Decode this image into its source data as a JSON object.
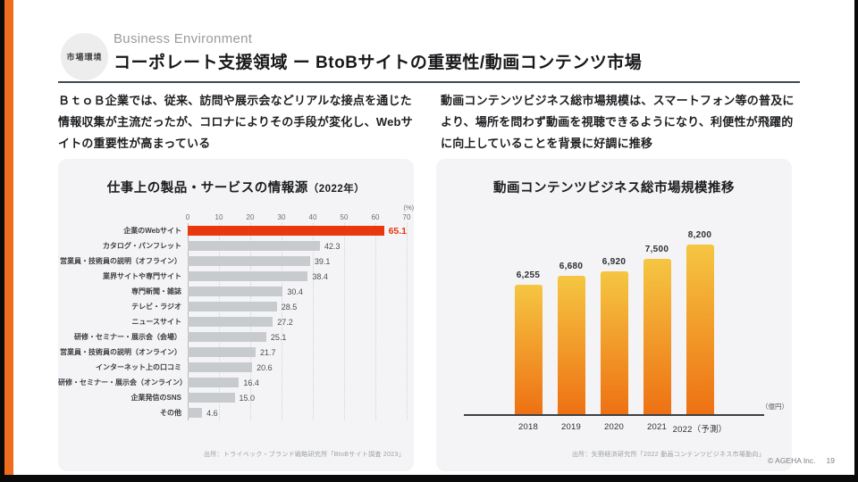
{
  "page": {
    "badge": "市場環境",
    "eyebrow": "Business Environment",
    "title": "コーポレート支援領域 ー BtoBサイトの重要性/動画コンテンツ市場",
    "left_paragraph": "ＢｔｏＢ企業では、従来、訪問や展示会などリアルな接点を通じた情報収集が主流だったが、コロナによりその手段が変化し、Webサイトの重要性が高まっている",
    "right_paragraph": "動画コンテンツビジネス総市場規模は、スマートフォン等の普及により、場所を問わず動画を視聴できるようになり、利便性が飛躍的に向上していることを背景に好調に推移",
    "footer": {
      "copyright": "© AGEHA Inc.",
      "page_number": "19"
    }
  },
  "colors": {
    "accent_orange": "#ee6c1d",
    "highlight_red": "#e8380d",
    "bar_gray": "#c8cbce",
    "bar_gradient_top": "#f5c642",
    "bar_gradient_bottom": "#ee7113"
  },
  "chart_data": [
    {
      "type": "bar",
      "orientation": "horizontal",
      "title": "仕事上の製品・サービスの情報源",
      "title_suffix": "（2022年）",
      "unit": "(%)",
      "xlim": [
        0,
        70
      ],
      "ticks": [
        0,
        10,
        20,
        30,
        40,
        50,
        60,
        70
      ],
      "grid": "dotted-vertical",
      "categories": [
        "企業のWebサイト",
        "カタログ・パンフレット",
        "営業員・技術員の説明（オフライン）",
        "業界サイトや専門サイト",
        "専門新聞・雑誌",
        "テレビ・ラジオ",
        "ニュースサイト",
        "研修・セミナー・展示会（会場）",
        "営業員・技術員の説明（オンライン）",
        "インターネット上の口コミ",
        "研修・セミナー・展示会（オンライン）",
        "企業発信のSNS",
        "その他"
      ],
      "values": [
        65.1,
        42.3,
        39.1,
        38.4,
        30.4,
        28.5,
        27.2,
        25.1,
        21.7,
        20.6,
        16.4,
        15.0,
        4.6
      ],
      "value_labels": [
        "65.1",
        "42.3",
        "39.1",
        "38.4",
        "30.4",
        "28.5",
        "27.2",
        "25.1",
        "21.7",
        "20.6",
        "16.4",
        "15.0",
        "4.6"
      ],
      "highlight_index": 0,
      "source": "出所：トライベック・ブランド戦略研究所「BtoBサイト調査 2023」"
    },
    {
      "type": "bar",
      "orientation": "vertical",
      "title": "動画コンテンツビジネス総市場規模推移",
      "unit": "（億円）",
      "ylim": [
        0,
        8200
      ],
      "categories": [
        "2018",
        "2019",
        "2020",
        "2021",
        "2022（予測）"
      ],
      "values": [
        6255,
        6680,
        6920,
        7500,
        8200
      ],
      "value_labels": [
        "6,255",
        "6,680",
        "6,920",
        "7,500",
        "8,200"
      ],
      "source": "出所：矢野経済研究所「2022 動画コンテンツビジネス市場動向」"
    }
  ]
}
